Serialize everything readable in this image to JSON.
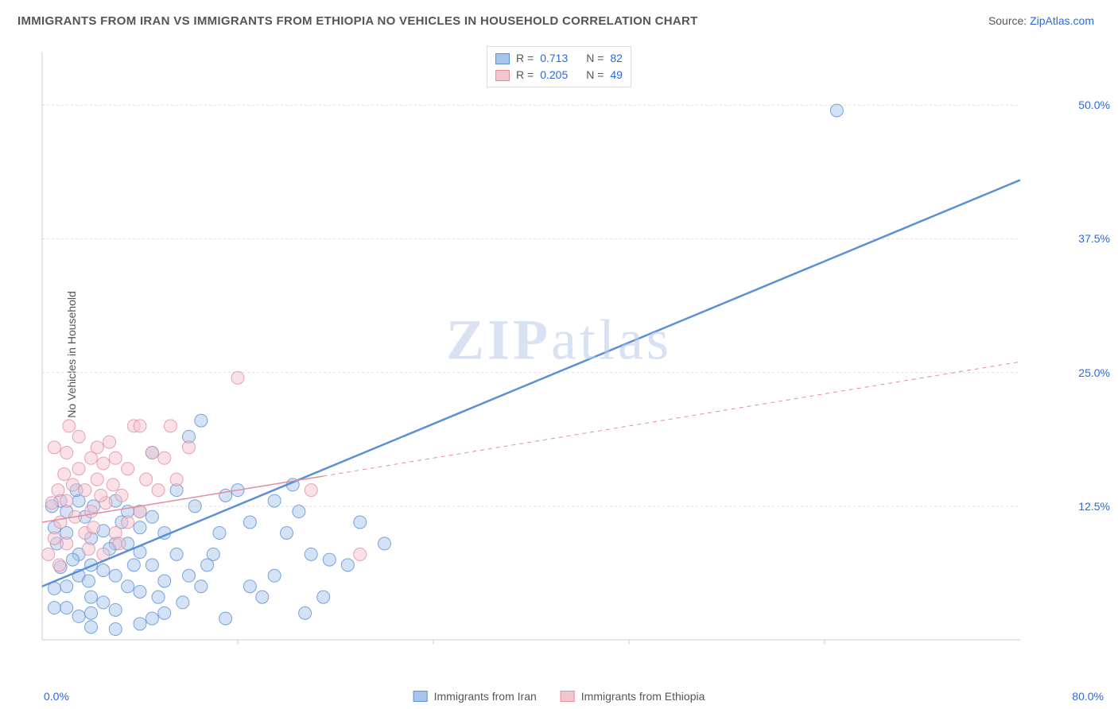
{
  "title": "IMMIGRANTS FROM IRAN VS IMMIGRANTS FROM ETHIOPIA NO VEHICLES IN HOUSEHOLD CORRELATION CHART",
  "source_prefix": "Source: ",
  "source_link": "ZipAtlas.com",
  "ylabel": "No Vehicles in Household",
  "watermark_a": "ZIP",
  "watermark_b": "atlas",
  "chart": {
    "type": "scatter",
    "xlim": [
      0,
      80
    ],
    "ylim": [
      0,
      55
    ],
    "xticks": [
      0,
      80
    ],
    "xtick_labels": [
      "0.0%",
      "80.0%"
    ],
    "yticks": [
      12.5,
      25.0,
      37.5,
      50.0
    ],
    "ytick_labels": [
      "12.5%",
      "25.0%",
      "37.5%",
      "50.0%"
    ],
    "xtick_minor": [
      16,
      32,
      48,
      64
    ],
    "grid_color": "#e0e0e0",
    "background_color": "#ffffff",
    "axis_color": "#cccccc",
    "marker_radius": 8,
    "marker_opacity": 0.5,
    "series": [
      {
        "name": "Immigrants from Iran",
        "color": "#5b8fd6",
        "fill": "#a8c5eb",
        "R": "0.713",
        "N": "82",
        "trend": {
          "x1": 0,
          "y1": 5,
          "x2": 80,
          "y2": 43,
          "style": "solid",
          "solid_until_x": 80
        },
        "points": [
          [
            1,
            3
          ],
          [
            2,
            3
          ],
          [
            3,
            2.2
          ],
          [
            4,
            2.5
          ],
          [
            2,
            5
          ],
          [
            4,
            4
          ],
          [
            3,
            6
          ],
          [
            1.5,
            6.8
          ],
          [
            5,
            3.5
          ],
          [
            6,
            2.8
          ],
          [
            4,
            7
          ],
          [
            3,
            8
          ],
          [
            6,
            6
          ],
          [
            7,
            5
          ],
          [
            8,
            4.5
          ],
          [
            1.2,
            9
          ],
          [
            2,
            10
          ],
          [
            4,
            9.5
          ],
          [
            5,
            10.2
          ],
          [
            6.5,
            11
          ],
          [
            3.5,
            11.5
          ],
          [
            2,
            12
          ],
          [
            1,
            10.5
          ],
          [
            7,
            9
          ],
          [
            8,
            8.2
          ],
          [
            9,
            7
          ],
          [
            10,
            5.5
          ],
          [
            5,
            6.5
          ],
          [
            6,
            9
          ],
          [
            4.2,
            12.5
          ],
          [
            3,
            13
          ],
          [
            8,
            12
          ],
          [
            9,
            11.5
          ],
          [
            10,
            10
          ],
          [
            11,
            8
          ],
          [
            12,
            6
          ],
          [
            6,
            13
          ],
          [
            7,
            12
          ],
          [
            8,
            10.5
          ],
          [
            2.5,
            7.5
          ],
          [
            3.8,
            5.5
          ],
          [
            5.5,
            8.5
          ],
          [
            7.5,
            7
          ],
          [
            1,
            4.8
          ],
          [
            9.5,
            4
          ],
          [
            11.5,
            3.5
          ],
          [
            13,
            5
          ],
          [
            14,
            8
          ],
          [
            14.5,
            10
          ],
          [
            15,
            13.5
          ],
          [
            16,
            14
          ],
          [
            12.5,
            12.5
          ],
          [
            11,
            14
          ],
          [
            13.5,
            7
          ],
          [
            17,
            5
          ],
          [
            18,
            4
          ],
          [
            19,
            6
          ],
          [
            20,
            10
          ],
          [
            20.5,
            14.5
          ],
          [
            12,
            19
          ],
          [
            13,
            20.5
          ],
          [
            9,
            17.5
          ],
          [
            21,
            12
          ],
          [
            22,
            8
          ],
          [
            23,
            4
          ],
          [
            25,
            7
          ],
          [
            26,
            11
          ],
          [
            28,
            9
          ],
          [
            15,
            2
          ],
          [
            17,
            11
          ],
          [
            6,
            1
          ],
          [
            8,
            1.5
          ],
          [
            10,
            2.5
          ],
          [
            4,
            1.2
          ],
          [
            19,
            13
          ],
          [
            9,
            2
          ],
          [
            23.5,
            7.5
          ],
          [
            21.5,
            2.5
          ],
          [
            65,
            49.5
          ],
          [
            1.5,
            13
          ],
          [
            2.8,
            14
          ],
          [
            0.8,
            12.5
          ]
        ]
      },
      {
        "name": "Immigrants from Ethiopia",
        "color": "#e28ca0",
        "fill": "#f4c4cf",
        "R": "0.205",
        "N": "49",
        "trend": {
          "x1": 0,
          "y1": 11,
          "x2": 80,
          "y2": 26,
          "style": "dashed",
          "solid_until_x": 23
        },
        "points": [
          [
            0.5,
            8
          ],
          [
            1,
            9.5
          ],
          [
            1.5,
            11
          ],
          [
            2,
            13
          ],
          [
            2.5,
            14.5
          ],
          [
            3,
            16
          ],
          [
            1,
            18
          ],
          [
            2,
            17.5
          ],
          [
            0.8,
            12.8
          ],
          [
            1.3,
            14
          ],
          [
            3.5,
            10
          ],
          [
            4,
            12
          ],
          [
            4.5,
            15
          ],
          [
            5,
            16.5
          ],
          [
            5.5,
            18.5
          ],
          [
            3.5,
            14
          ],
          [
            4,
            17
          ],
          [
            6,
            10
          ],
          [
            6.5,
            13.5
          ],
          [
            7,
            16
          ],
          [
            7.5,
            20
          ],
          [
            3,
            19
          ],
          [
            4.5,
            18
          ],
          [
            2,
            9
          ],
          [
            2.7,
            11.5
          ],
          [
            1.8,
            15.5
          ],
          [
            5.2,
            12.8
          ],
          [
            6,
            17
          ],
          [
            8,
            12
          ],
          [
            8.5,
            15
          ],
          [
            9,
            17.5
          ],
          [
            5,
            8
          ],
          [
            6.3,
            9
          ],
          [
            7,
            11
          ],
          [
            3.8,
            8.5
          ],
          [
            4.2,
            10.5
          ],
          [
            9.5,
            14
          ],
          [
            10,
            17
          ],
          [
            10.5,
            20
          ],
          [
            11,
            15
          ],
          [
            12,
            18
          ],
          [
            8,
            20
          ],
          [
            2.2,
            20
          ],
          [
            16,
            24.5
          ],
          [
            22,
            14
          ],
          [
            26,
            8
          ],
          [
            1.4,
            7
          ],
          [
            5.8,
            14.5
          ],
          [
            4.8,
            13.5
          ]
        ]
      }
    ]
  },
  "stats_legend": {
    "r_label": "R =",
    "n_label": "N ="
  },
  "bottom_legend_labels": [
    "Immigrants from Iran",
    "Immigrants from Ethiopia"
  ],
  "colors": {
    "link": "#2b69d8",
    "text": "#555555"
  }
}
